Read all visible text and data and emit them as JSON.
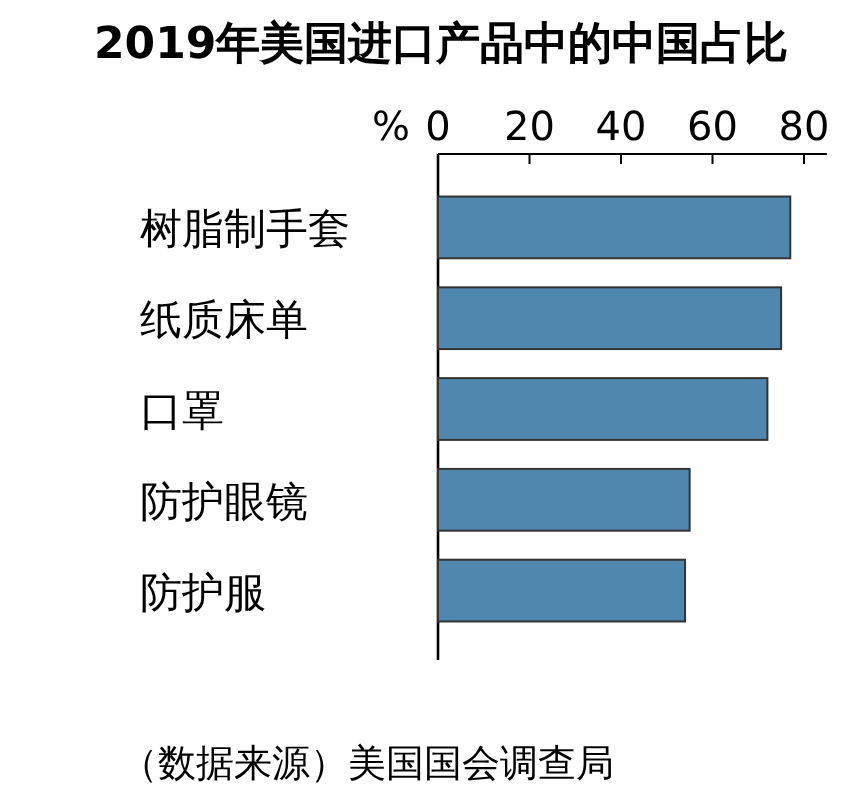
{
  "chart_data": {
    "type": "bar",
    "orientation": "horizontal",
    "title": "2019年美国进口产品中的中国占比",
    "xlabel": "%",
    "categories": [
      "树脂制手套",
      "纸质床单",
      "口罩",
      "防护眼镜",
      "防护服"
    ],
    "values": [
      77,
      75,
      72,
      55,
      54
    ],
    "color": "#4f87ae",
    "xlim": [
      0,
      85
    ],
    "xticks": [
      0,
      20,
      40,
      60,
      80
    ],
    "grid": false,
    "annotations": [
      "（数据来源）美国国会调查局"
    ]
  }
}
